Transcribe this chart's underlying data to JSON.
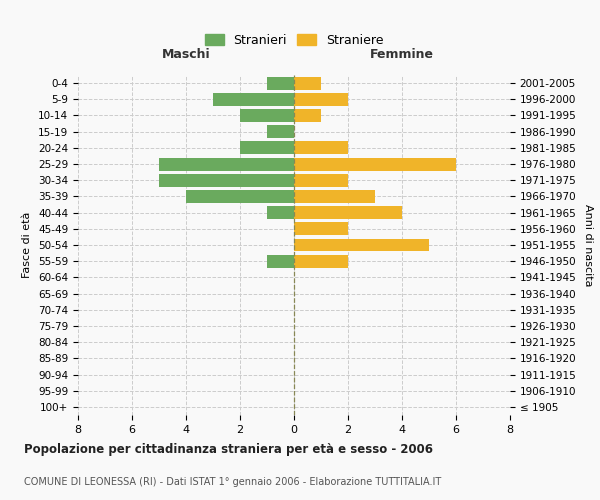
{
  "age_groups": [
    "100+",
    "95-99",
    "90-94",
    "85-89",
    "80-84",
    "75-79",
    "70-74",
    "65-69",
    "60-64",
    "55-59",
    "50-54",
    "45-49",
    "40-44",
    "35-39",
    "30-34",
    "25-29",
    "20-24",
    "15-19",
    "10-14",
    "5-9",
    "0-4"
  ],
  "birth_years": [
    "≤ 1905",
    "1906-1910",
    "1911-1915",
    "1916-1920",
    "1921-1925",
    "1926-1930",
    "1931-1935",
    "1936-1940",
    "1941-1945",
    "1946-1950",
    "1951-1955",
    "1956-1960",
    "1961-1965",
    "1966-1970",
    "1971-1975",
    "1976-1980",
    "1981-1985",
    "1986-1990",
    "1991-1995",
    "1996-2000",
    "2001-2005"
  ],
  "maschi": [
    0,
    0,
    0,
    0,
    0,
    0,
    0,
    0,
    0,
    1,
    0,
    0,
    1,
    4,
    5,
    5,
    2,
    1,
    2,
    3,
    1
  ],
  "femmine": [
    0,
    0,
    0,
    0,
    0,
    0,
    0,
    0,
    0,
    2,
    5,
    2,
    4,
    3,
    2,
    6,
    2,
    0,
    1,
    2,
    1
  ],
  "color_maschi": "#6aaa5e",
  "color_femmine": "#f0b429",
  "xlim": 8,
  "title": "Popolazione per cittadinanza straniera per età e sesso - 2006",
  "subtitle": "COMUNE DI LEONESSA (RI) - Dati ISTAT 1° gennaio 2006 - Elaborazione TUTTITALIA.IT",
  "xlabel_left": "Maschi",
  "xlabel_right": "Femmine",
  "ylabel_left": "Fasce di età",
  "ylabel_right": "Anni di nascita",
  "legend_maschi": "Stranieri",
  "legend_femmine": "Straniere",
  "background_color": "#f9f9f9",
  "grid_color": "#cccccc",
  "bar_height": 0.8,
  "center_line_color": "#888855"
}
